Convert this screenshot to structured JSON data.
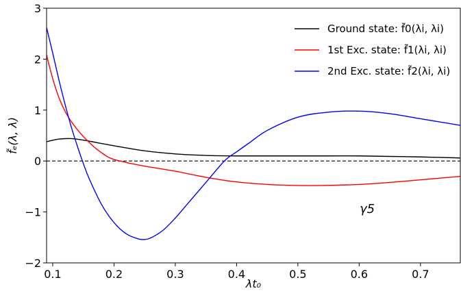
{
  "chart_data": {
    "type": "line",
    "xlabel": "λt₀",
    "ylabel": "f̃ₑ(λ, λ)",
    "xlim": [
      0.09,
      0.765
    ],
    "ylim": [
      -2,
      3
    ],
    "xticks": [
      0.1,
      0.2,
      0.3,
      0.4,
      0.5,
      0.6,
      0.7
    ],
    "xtick_labels": [
      "0.1",
      "0.2",
      "0.3",
      "0.4",
      "0.5",
      "0.6",
      "0.7"
    ],
    "yticks": [
      -2,
      -1,
      0,
      1,
      2,
      3
    ],
    "ytick_labels": [
      "−2",
      "−1",
      "0",
      "1",
      "2",
      "3"
    ],
    "grid": false,
    "legend_position": "top-right",
    "annotation": "γ5",
    "reference_line": {
      "y": 0,
      "style": "dashed",
      "color": "#000000"
    },
    "series": [
      {
        "name": "Ground state: f̃0(λi, λi)",
        "color": "#000000",
        "x": [
          0.09,
          0.11,
          0.13,
          0.15,
          0.2,
          0.25,
          0.3,
          0.35,
          0.4,
          0.45,
          0.5,
          0.55,
          0.6,
          0.65,
          0.7,
          0.765
        ],
        "y": [
          0.38,
          0.43,
          0.44,
          0.41,
          0.3,
          0.2,
          0.14,
          0.11,
          0.1,
          0.1,
          0.1,
          0.1,
          0.1,
          0.09,
          0.08,
          0.06
        ]
      },
      {
        "name": "1st Exc. state: f̃1(λi, λi)",
        "color": "#ff0000",
        "x": [
          0.09,
          0.1,
          0.11,
          0.12,
          0.13,
          0.14,
          0.15,
          0.16,
          0.17,
          0.18,
          0.19,
          0.2,
          0.21,
          0.22,
          0.25,
          0.3,
          0.35,
          0.4,
          0.45,
          0.5,
          0.54,
          0.6,
          0.65,
          0.7,
          0.765
        ],
        "y": [
          2.08,
          1.62,
          1.25,
          0.98,
          0.78,
          0.62,
          0.48,
          0.36,
          0.25,
          0.16,
          0.08,
          0.03,
          0.0,
          -0.03,
          -0.1,
          -0.2,
          -0.32,
          -0.41,
          -0.46,
          -0.48,
          -0.48,
          -0.46,
          -0.42,
          -0.37,
          -0.3
        ]
      },
      {
        "name": "2nd Exc. state: f̃2(λi, λi)",
        "color": "#0000ff",
        "x": [
          0.09,
          0.1,
          0.11,
          0.12,
          0.13,
          0.14,
          0.15,
          0.16,
          0.18,
          0.2,
          0.22,
          0.24,
          0.25,
          0.26,
          0.28,
          0.3,
          0.32,
          0.35,
          0.38,
          0.4,
          0.42,
          0.45,
          0.5,
          0.55,
          0.6,
          0.65,
          0.7,
          0.765
        ],
        "y": [
          2.62,
          2.12,
          1.6,
          1.12,
          0.68,
          0.3,
          -0.05,
          -0.36,
          -0.86,
          -1.21,
          -1.43,
          -1.53,
          -1.54,
          -1.51,
          -1.36,
          -1.12,
          -0.84,
          -0.42,
          0.0,
          0.18,
          0.35,
          0.6,
          0.86,
          0.96,
          0.98,
          0.93,
          0.83,
          0.7
        ]
      }
    ]
  }
}
